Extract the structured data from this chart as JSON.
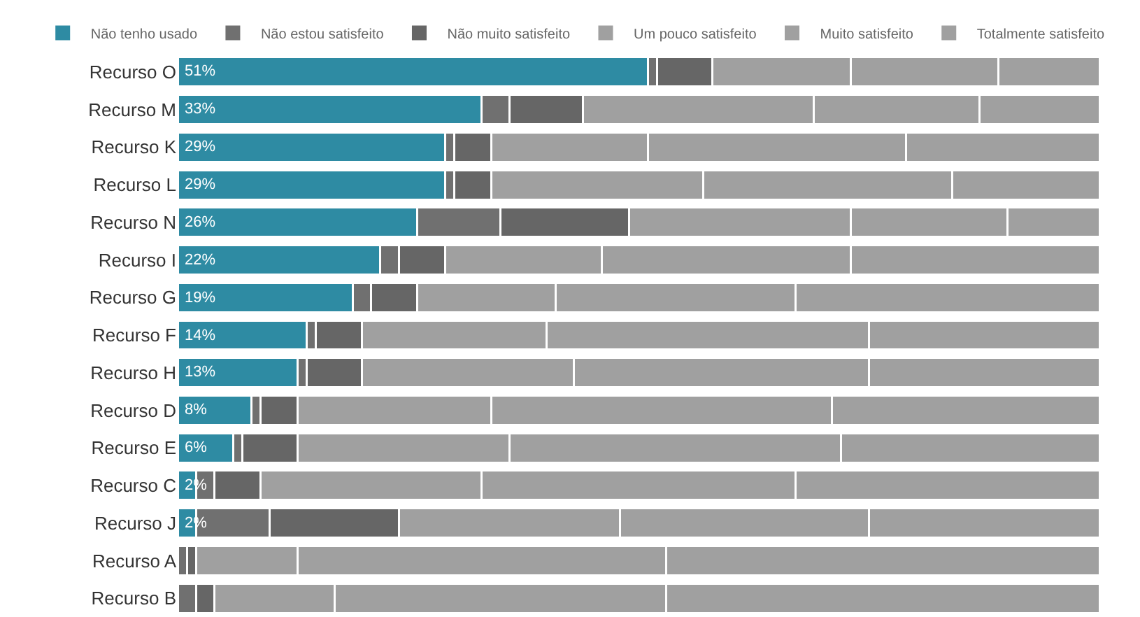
{
  "chart_data": {
    "type": "bar",
    "orientation": "horizontal",
    "stacked": true,
    "xlim": [
      0,
      100
    ],
    "tick_labels": "y",
    "legend": "top left",
    "categories": [
      "Recurso O",
      "Recurso M",
      "Recurso K",
      "Recurso L",
      "Recurso N",
      "Recurso I",
      "Recurso G",
      "Recurso F",
      "Recurso H",
      "Recurso D",
      "Recurso E",
      "Recurso C",
      "Recurso J",
      "Recurso A",
      "Recurso B"
    ],
    "series": [
      {
        "name": "Não tenho usado",
        "color": "#2e8ba3",
        "values": [
          51,
          33,
          29,
          29,
          26,
          22,
          19,
          14,
          13,
          8,
          6,
          2,
          2,
          0,
          0
        ],
        "value_labels": [
          "51%",
          "33%",
          "29%",
          "29%",
          "26%",
          "22%",
          "19%",
          "14%",
          "13%",
          "8%",
          "6%",
          "2%",
          "2%",
          null,
          null
        ]
      },
      {
        "name": "Não estou satisfeito",
        "color": "#707070",
        "values": [
          1,
          3,
          1,
          1,
          9,
          2,
          2,
          1,
          1,
          1,
          1,
          2,
          8,
          1,
          2
        ]
      },
      {
        "name": "Não muito satisfeito",
        "color": "#666666",
        "values": [
          6,
          8,
          4,
          4,
          14,
          5,
          5,
          5,
          6,
          4,
          6,
          5,
          14,
          1,
          2
        ]
      },
      {
        "name": "Um pouco satisfeito",
        "color": "#a0a0a0",
        "values": [
          15,
          25,
          17,
          23,
          24,
          17,
          15,
          20,
          23,
          21,
          23,
          24,
          24,
          11,
          13
        ]
      },
      {
        "name": "Muito satisfeito",
        "color": "#a0a0a0",
        "values": [
          16,
          18,
          28,
          27,
          17,
          27,
          26,
          35,
          32,
          37,
          36,
          34,
          27,
          40,
          36
        ]
      },
      {
        "name": "Totalmente satisfeito",
        "color": "#a0a0a0",
        "values": [
          11,
          13,
          21,
          16,
          10,
          27,
          33,
          25,
          25,
          29,
          28,
          33,
          25,
          47,
          47
        ]
      }
    ]
  }
}
